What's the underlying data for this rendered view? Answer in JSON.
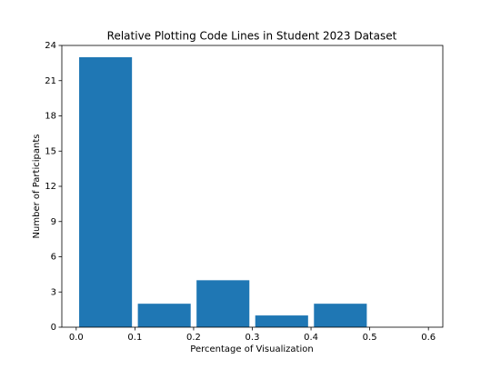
{
  "chart_data": {
    "type": "histogram",
    "title": "Relative Plotting Code Lines in Student 2023 Dataset",
    "x_label": "Percentage of Visualization",
    "y_label": "Number of Participants",
    "bins": [
      0,
      0.1,
      0.2,
      0.3,
      0.4,
      0.5,
      0.6
    ],
    "values": [
      23,
      2,
      4,
      1,
      2,
      0
    ],
    "color": "#1f77b4",
    "xlim": [
      -0.0245,
      0.6245
    ],
    "xticks": [
      {
        "value": 0,
        "label": "0.0"
      },
      0.1,
      0.2,
      0.3,
      0.4,
      0.5,
      0.6
    ],
    "ylim": [
      0,
      24
    ],
    "yticks": [
      0,
      3,
      6,
      9,
      12,
      15,
      18,
      21,
      24
    ]
  }
}
